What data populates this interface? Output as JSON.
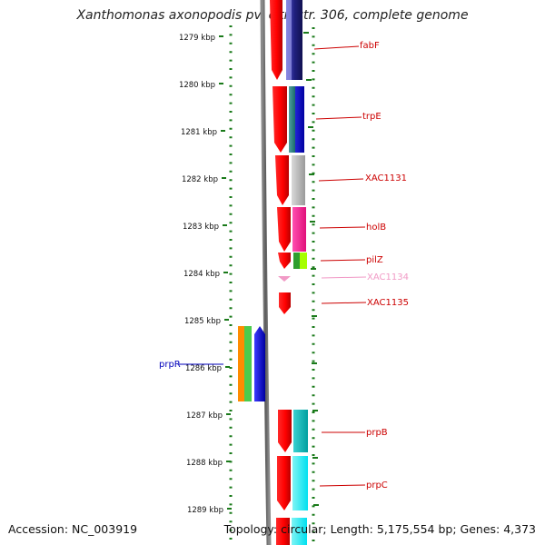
{
  "title": "Xanthomonas axonopodis pv. citri str. 306, complete genome",
  "accession": "Accession: NC_003919",
  "topology": "Topology: circular; Length: 5,175,554 bp; Genes: 4,373",
  "ruler": {
    "labels": [
      "1279 kbp",
      "1280 kbp",
      "1281 kbp",
      "1282 kbp",
      "1283 kbp",
      "1284 kbp",
      "1285 kbp",
      "1286 kbp",
      "1287 kbp",
      "1288 kbp",
      "1289 kbp"
    ],
    "tick_color": "#1a7a1a"
  },
  "genes": [
    {
      "name": "fabF",
      "color": "#cc0000"
    },
    {
      "name": "trpE",
      "color": "#cc0000"
    },
    {
      "name": "XAC1131",
      "color": "#cc0000"
    },
    {
      "name": "holB",
      "color": "#cc0000"
    },
    {
      "name": "pilZ",
      "color": "#cc0000"
    },
    {
      "name": "XAC1134",
      "color": "#f19ac6"
    },
    {
      "name": "XAC1135",
      "color": "#cc0000"
    },
    {
      "name": "prpB",
      "color": "#cc0000"
    },
    {
      "name": "prpC",
      "color": "#cc0000"
    },
    {
      "name": "prpR",
      "color": "#0000bb"
    }
  ]
}
